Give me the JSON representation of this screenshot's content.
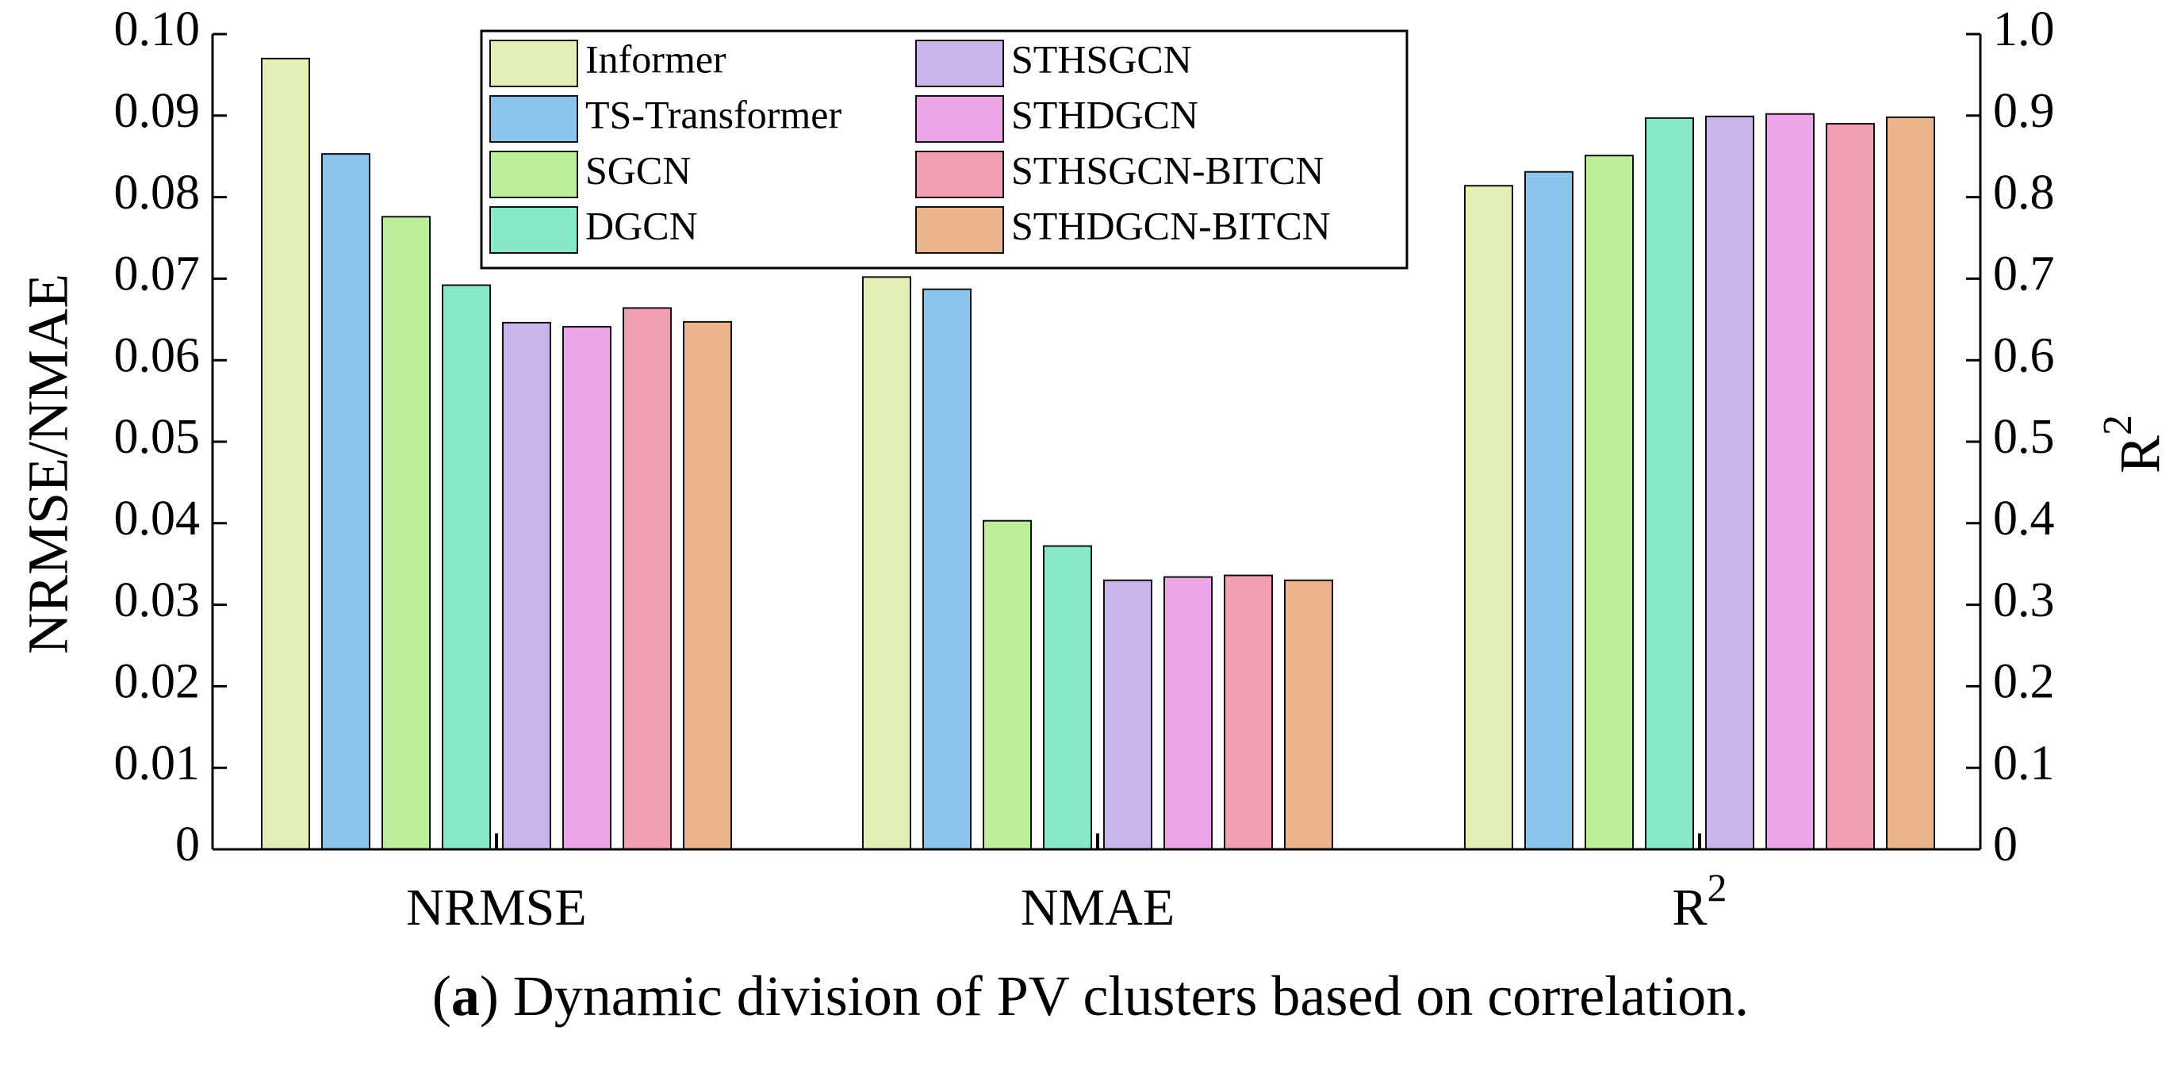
{
  "chart_data": {
    "type": "bar",
    "categories": [
      "NRMSE",
      "NMAE",
      "R²"
    ],
    "category_labels": [
      {
        "base": "NRMSE",
        "sup": ""
      },
      {
        "base": "NMAE",
        "sup": ""
      },
      {
        "base": "R",
        "sup": "2"
      }
    ],
    "series": [
      {
        "name": "Informer",
        "color": "#e4efb7",
        "values": [
          0.097,
          0.0702,
          0.814
        ]
      },
      {
        "name": "TS-Transformer",
        "color": "#8cc4ec",
        "values": [
          0.0853,
          0.0687,
          0.831
        ]
      },
      {
        "name": "SGCN",
        "color": "#bcee9c",
        "values": [
          0.0776,
          0.0403,
          0.851
        ]
      },
      {
        "name": "DGCN",
        "color": "#88e9c8",
        "values": [
          0.0692,
          0.0372,
          0.897
        ]
      },
      {
        "name": "STHSGCN",
        "color": "#c9b4ec",
        "values": [
          0.0646,
          0.033,
          0.899
        ]
      },
      {
        "name": "STHDGCN",
        "color": "#eca6e8",
        "values": [
          0.0641,
          0.0334,
          0.902
        ]
      },
      {
        "name": "STHSGCN-BITCN",
        "color": "#f1a0b4",
        "values": [
          0.0664,
          0.0336,
          0.89
        ]
      },
      {
        "name": "STHDGCN-BITCN",
        "color": "#ecb48c",
        "values": [
          0.0647,
          0.033,
          0.898
        ]
      }
    ],
    "y_left": {
      "label": "NRMSE/NMAE",
      "range": [
        0,
        0.1
      ],
      "ticks": [
        "0",
        "0.01",
        "0.02",
        "0.03",
        "0.04",
        "0.05",
        "0.06",
        "0.07",
        "0.08",
        "0.09",
        "0.10"
      ],
      "applies_to": [
        "NRMSE",
        "NMAE"
      ]
    },
    "y_right": {
      "label": {
        "base": "R",
        "sup": "2"
      },
      "range": [
        0,
        1.0
      ],
      "ticks": [
        "0",
        "0.1",
        "0.2",
        "0.3",
        "0.4",
        "0.5",
        "0.6",
        "0.7",
        "0.8",
        "0.9",
        "1.0"
      ],
      "applies_to": [
        "R²"
      ]
    },
    "grid": false,
    "legend_position": "top-center, inside plot, 2 columns"
  },
  "caption": {
    "label": "a",
    "text": "Dynamic division of PV clusters based on correlation."
  }
}
